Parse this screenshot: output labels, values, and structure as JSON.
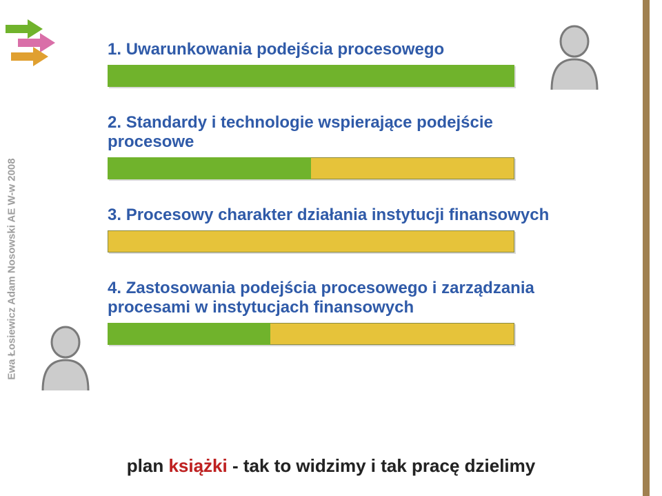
{
  "colors": {
    "right_bar": "#a08050",
    "bar_bg": "#e6c33a",
    "bar_fill": "#70b32c",
    "title1": "#2f5aa8",
    "title2": "#2f5aa8",
    "title3": "#2f5aa8",
    "title4": "#2f5aa8",
    "arrow_green": "#70b32c",
    "arrow_pink": "#d96fa8",
    "arrow_orange": "#e0a030",
    "person_fill": "#cccccc",
    "person_stroke": "#7a7a7a",
    "footer_text": "#222222",
    "footer_accent": "#c02020"
  },
  "author": {
    "name": "Ewa Łosiewicz Adam Nosowski AE W-w",
    "year": "2008"
  },
  "sections": [
    {
      "number": "1.",
      "title": "Uwarunkowania podejścia procesowego",
      "fill": 1.0
    },
    {
      "number": "2.",
      "title": "Standardy i technologie wspierające podejście procesowe",
      "fill": 0.5
    },
    {
      "number": "3.",
      "title": "Procesowy charakter działania instytucji finansowych",
      "fill": 0.0
    },
    {
      "number": "4.",
      "title": "Zastosowania podejścia procesowego i zarządzania procesami w instytucjach finansowych",
      "fill": 0.4
    }
  ],
  "footer": {
    "prefix": "plan ",
    "accent": "książki",
    "rest": " - tak to widzimy i tak pracę dzielimy"
  }
}
